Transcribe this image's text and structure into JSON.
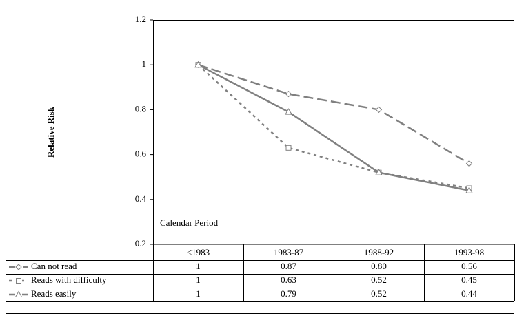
{
  "chart_data": {
    "type": "line",
    "ylabel": "Relative Risk",
    "annotation": "Calendar Period",
    "categories": [
      "<1983",
      "1983-87",
      "1988-92",
      "1993-98"
    ],
    "ylim": [
      0.2,
      1.2
    ],
    "yticks": [
      0.2,
      0.4,
      0.6,
      0.8,
      1,
      1.2
    ],
    "grid": false,
    "series": [
      {
        "name": "Can not read",
        "color": "#808080",
        "linestyle": "dashed",
        "marker": "diamond",
        "values": [
          1,
          0.87,
          0.8,
          0.56
        ],
        "value_labels": [
          "1",
          "0.87",
          "0.80",
          "0.56"
        ]
      },
      {
        "name": "Reads with difficulty",
        "color": "#808080",
        "linestyle": "dotted",
        "marker": "square",
        "values": [
          1,
          0.63,
          0.52,
          0.45
        ],
        "value_labels": [
          "1",
          "0.63",
          "0.52",
          "0.45"
        ]
      },
      {
        "name": "Reads easily",
        "color": "#808080",
        "linestyle": "solid",
        "marker": "triangle",
        "values": [
          1,
          0.79,
          0.52,
          0.44
        ],
        "value_labels": [
          "1",
          "0.79",
          "0.52",
          "0.44"
        ]
      }
    ]
  }
}
